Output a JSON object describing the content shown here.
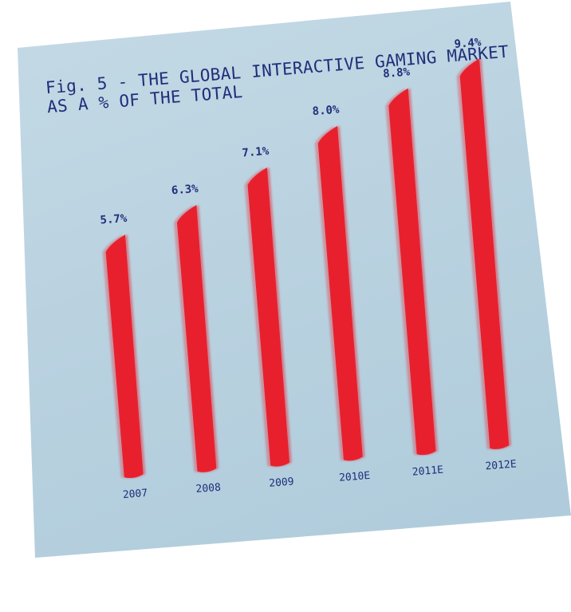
{
  "chart_data": {
    "type": "bar",
    "title": "Fig. 5 - THE GLOBAL INTERACTIVE GAMING MARKET",
    "subtitle": "AS A % OF THE TOTAL",
    "categories": [
      "2007",
      "2008",
      "2009",
      "2010E",
      "2011E",
      "2012E"
    ],
    "values": [
      5.7,
      6.3,
      7.1,
      8.0,
      8.8,
      9.4
    ],
    "value_labels": [
      "5.7%",
      "6.3%",
      "7.1%",
      "8.0%",
      "8.8%",
      "9.4%"
    ],
    "bar_color": "#e8202e",
    "text_color": "#1f2f7a",
    "background": "#bcd4e2",
    "ylim": [
      0,
      9.4
    ]
  }
}
